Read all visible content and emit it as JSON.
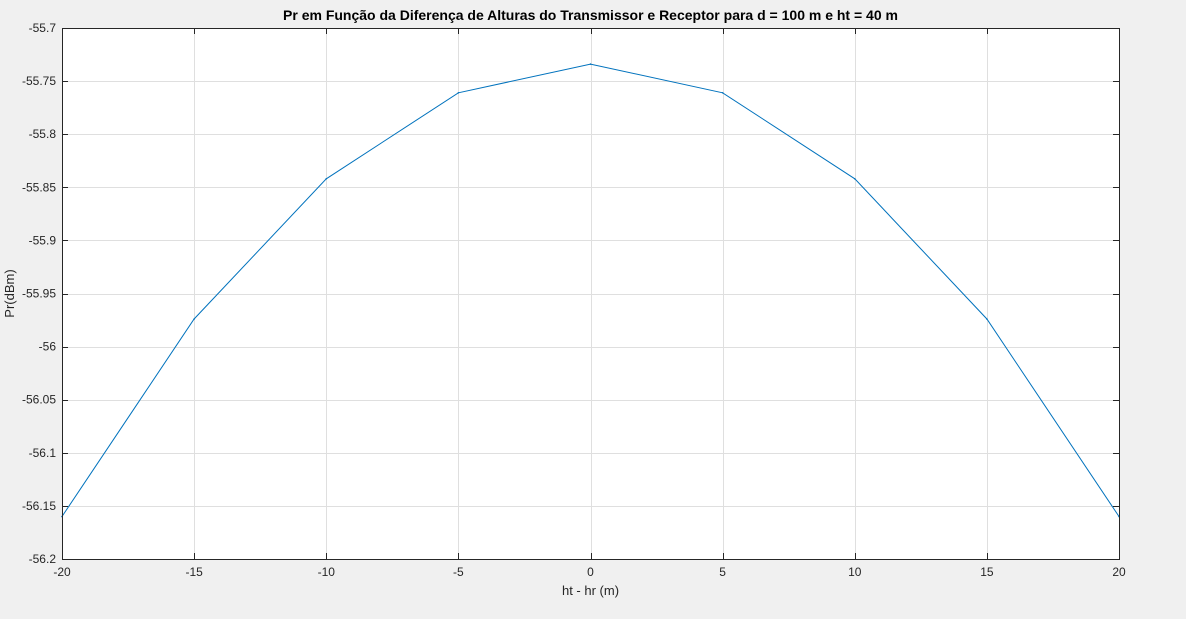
{
  "chart_data": {
    "type": "line",
    "title": "Pr em Função da Diferença de Alturas do Transmissor e Receptor para d = 100 m e ht = 40 m",
    "xlabel": "ht - hr (m)",
    "ylabel": "Pr(dBm)",
    "xlim": [
      -20,
      20
    ],
    "ylim": [
      -56.2,
      -55.7
    ],
    "xticks": [
      -20,
      -15,
      -10,
      -5,
      0,
      5,
      10,
      15,
      20
    ],
    "xtick_labels": [
      "-20",
      "-15",
      "-10",
      "-5",
      "0",
      "5",
      "10",
      "15",
      "20"
    ],
    "yticks": [
      -55.7,
      -55.75,
      -55.8,
      -55.85,
      -55.9,
      -55.95,
      -56,
      -56.05,
      -56.1,
      -56.15,
      -56.2
    ],
    "ytick_labels": [
      "-55.7",
      "-55.75",
      "-55.8",
      "-55.85",
      "-55.9",
      "-55.95",
      "-56",
      "-56.05",
      "-56.1",
      "-56.15",
      "-56.2"
    ],
    "grid": true,
    "series": [
      {
        "color": "#0072bd",
        "x": [
          -20,
          -15,
          -10,
          -5,
          0,
          5,
          10,
          15,
          20
        ],
        "y": [
          -56.16,
          -55.974,
          -55.842,
          -55.761,
          -55.734,
          -55.761,
          -55.842,
          -55.974,
          -56.16
        ]
      }
    ]
  }
}
